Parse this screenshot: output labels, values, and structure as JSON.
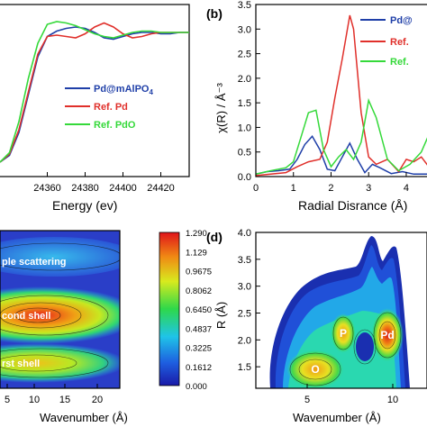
{
  "panels": {
    "b_label": "(b)",
    "d_label": "(d)"
  },
  "colors": {
    "pd_mAlPO4": "#1f3fa8",
    "ref_pd": "#e0302b",
    "ref_pdo": "#35d93a"
  },
  "chart_data": [
    {
      "panel": "a",
      "type": "line",
      "xlabel": "Energy (ev)",
      "ylabel": "",
      "xlim": [
        24335,
        24435
      ],
      "x_ticks": [
        "24360",
        "24380",
        "24400",
        "24420"
      ],
      "legend": [
        "Pd@mAlPO4",
        "Ref. Pd",
        "Ref. PdO"
      ],
      "series": [
        {
          "name": "Pd@mAlPO4",
          "color": "#1f3fa8",
          "x": [
            24335,
            24340,
            24345,
            24350,
            24355,
            24360,
            24365,
            24370,
            24375,
            24380,
            24385,
            24390,
            24395,
            24400,
            24405,
            24410,
            24415,
            24420,
            24425,
            24430,
            24435
          ],
          "y": [
            0.0,
            0.05,
            0.22,
            0.5,
            0.78,
            0.93,
            0.97,
            0.99,
            1.0,
            0.99,
            0.96,
            0.92,
            0.91,
            0.93,
            0.95,
            0.96,
            0.96,
            0.95,
            0.95,
            0.96,
            0.96
          ]
        },
        {
          "name": "Ref. Pd",
          "color": "#e0302b",
          "x": [
            24335,
            24340,
            24345,
            24350,
            24355,
            24360,
            24365,
            24370,
            24375,
            24380,
            24385,
            24390,
            24395,
            24400,
            24405,
            24410,
            24415,
            24420,
            24425,
            24430,
            24435
          ],
          "y": [
            0.0,
            0.06,
            0.24,
            0.52,
            0.8,
            0.93,
            0.94,
            0.93,
            0.92,
            0.95,
            1.0,
            1.03,
            1.0,
            0.95,
            0.92,
            0.93,
            0.95,
            0.96,
            0.96,
            0.96,
            0.96
          ]
        },
        {
          "name": "Ref. PdO",
          "color": "#35d93a",
          "x": [
            24335,
            24340,
            24345,
            24350,
            24355,
            24360,
            24365,
            24370,
            24375,
            24380,
            24385,
            24390,
            24395,
            24400,
            24405,
            24410,
            24415,
            24420,
            24425,
            24430,
            24435
          ],
          "y": [
            0.0,
            0.07,
            0.3,
            0.62,
            0.88,
            1.02,
            1.04,
            1.03,
            1.01,
            0.98,
            0.95,
            0.93,
            0.92,
            0.94,
            0.96,
            0.97,
            0.97,
            0.96,
            0.96,
            0.96,
            0.96
          ]
        }
      ]
    },
    {
      "panel": "b",
      "type": "line",
      "xlabel": "Radial Disrance (Å)",
      "ylabel": "χ(R) / Å⁻³",
      "xlim": [
        0,
        4.6
      ],
      "ylim": [
        0,
        3.5
      ],
      "x_ticks": [
        "0",
        "1",
        "2",
        "3",
        "4"
      ],
      "y_ticks": [
        "0.0",
        "0.5",
        "1.0",
        "1.5",
        "2.0",
        "2.5",
        "3.0",
        "3.5"
      ],
      "legend": [
        "Pd@",
        "Ref.",
        "Ref."
      ],
      "series": [
        {
          "name": "Pd@",
          "color": "#1f3fa8",
          "x": [
            0,
            0.3,
            0.6,
            0.9,
            1.1,
            1.3,
            1.5,
            1.7,
            1.9,
            2.1,
            2.3,
            2.5,
            2.7,
            2.9,
            3.1,
            3.3,
            3.6,
            3.9,
            4.2,
            4.6
          ],
          "y": [
            0.05,
            0.1,
            0.12,
            0.15,
            0.35,
            0.65,
            0.82,
            0.55,
            0.15,
            0.12,
            0.4,
            0.68,
            0.35,
            0.08,
            0.25,
            0.18,
            0.06,
            0.1,
            0.05,
            0.05
          ]
        },
        {
          "name": "Ref. Pd",
          "color": "#e0302b",
          "x": [
            0,
            0.4,
            0.8,
            1.1,
            1.4,
            1.7,
            1.9,
            2.1,
            2.3,
            2.5,
            2.6,
            2.8,
            3.0,
            3.2,
            3.5,
            3.8,
            4.0,
            4.2,
            4.4,
            4.6
          ],
          "y": [
            0.02,
            0.05,
            0.08,
            0.2,
            0.3,
            0.35,
            0.7,
            1.6,
            2.4,
            3.28,
            3.0,
            1.3,
            0.4,
            0.25,
            0.35,
            0.1,
            0.35,
            0.3,
            0.4,
            0.2
          ]
        },
        {
          "name": "Ref. PdO",
          "color": "#35d93a",
          "x": [
            0,
            0.4,
            0.8,
            1.0,
            1.2,
            1.4,
            1.6,
            1.8,
            2.0,
            2.2,
            2.4,
            2.6,
            2.8,
            3.0,
            3.2,
            3.5,
            3.8,
            4.1,
            4.4,
            4.6
          ],
          "y": [
            0.05,
            0.12,
            0.18,
            0.3,
            0.8,
            1.3,
            1.35,
            0.55,
            0.2,
            0.4,
            0.55,
            0.35,
            0.7,
            1.55,
            1.2,
            0.35,
            0.12,
            0.25,
            0.5,
            0.85
          ]
        }
      ]
    },
    {
      "panel": "c",
      "type": "heatmap",
      "xlabel": "Wavenumber (Å)",
      "x_ticks": [
        "5",
        "10",
        "15",
        "20"
      ],
      "annotations": [
        "ple scattering",
        "cond shell",
        "rst shell"
      ],
      "colorbar_ticks": [
        "1.290",
        "1.129",
        "0.9675",
        "0.8062",
        "0.6450",
        "0.4837",
        "0.3225",
        "0.1612",
        "0.000"
      ],
      "colorbar_range": [
        0.0,
        1.29
      ]
    },
    {
      "panel": "d",
      "type": "heatmap",
      "xlabel": "Wavenumber (Å)",
      "ylabel": "R (Å)",
      "xlim": [
        2,
        12
      ],
      "ylim": [
        1.1,
        4.0
      ],
      "x_ticks": [
        "5",
        "10"
      ],
      "y_ticks": [
        "1.5",
        "2.0",
        "2.5",
        "3.0",
        "3.5",
        "4.0"
      ],
      "annotations": [
        "O",
        "P",
        "Pd"
      ]
    }
  ]
}
